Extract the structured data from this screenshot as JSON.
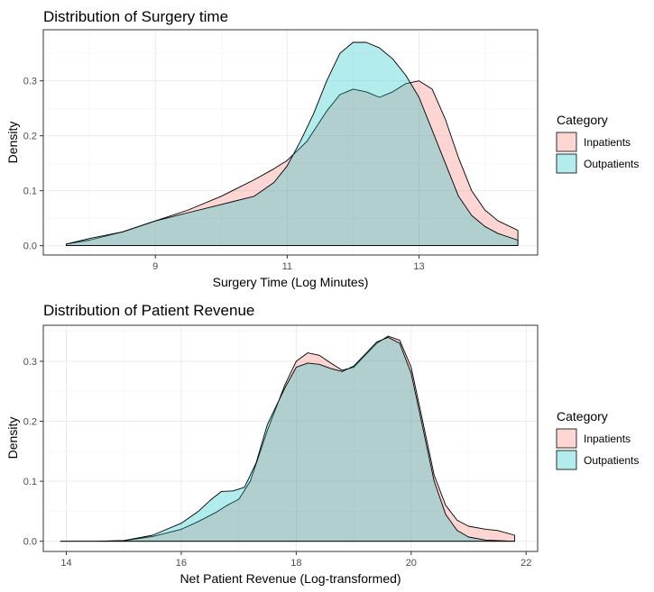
{
  "colors": {
    "inpatients": "#F8766D",
    "outpatients": "#00BFC4"
  },
  "chart_data": [
    {
      "type": "area",
      "title": "Distribution of Surgery time",
      "xlabel": "Surgery Time (Log Minutes)",
      "ylabel": "Density",
      "xlim": [
        7.3,
        14.8
      ],
      "ylim": [
        -0.017,
        0.393
      ],
      "xticks": [
        9,
        11,
        13
      ],
      "yticks": [
        0.0,
        0.1,
        0.2,
        0.3
      ],
      "ytick_labels": [
        "0.0",
        "0.1",
        "0.2",
        "0.3"
      ],
      "grid": true,
      "legend": {
        "title": "Category",
        "position": "right"
      },
      "series": [
        {
          "name": "Inpatients",
          "x": [
            7.65,
            8.0,
            8.5,
            9.0,
            9.5,
            10.0,
            10.5,
            10.8,
            11.0,
            11.3,
            11.6,
            11.8,
            12.0,
            12.2,
            12.4,
            12.6,
            12.8,
            13.0,
            13.2,
            13.4,
            13.6,
            13.8,
            14.0,
            14.2,
            14.5
          ],
          "y": [
            0.003,
            0.01,
            0.025,
            0.045,
            0.065,
            0.09,
            0.12,
            0.14,
            0.155,
            0.19,
            0.245,
            0.275,
            0.285,
            0.28,
            0.27,
            0.28,
            0.295,
            0.3,
            0.285,
            0.23,
            0.16,
            0.1,
            0.065,
            0.045,
            0.028
          ]
        },
        {
          "name": "Outpatients",
          "x": [
            7.65,
            8.0,
            8.5,
            9.0,
            9.5,
            10.0,
            10.5,
            10.8,
            11.0,
            11.2,
            11.4,
            11.6,
            11.8,
            12.0,
            12.2,
            12.4,
            12.6,
            12.8,
            13.0,
            13.2,
            13.4,
            13.6,
            13.8,
            14.0,
            14.2,
            14.5
          ],
          "y": [
            0.003,
            0.013,
            0.025,
            0.045,
            0.06,
            0.075,
            0.09,
            0.115,
            0.145,
            0.19,
            0.24,
            0.3,
            0.35,
            0.37,
            0.37,
            0.36,
            0.34,
            0.31,
            0.27,
            0.21,
            0.15,
            0.09,
            0.055,
            0.035,
            0.022,
            0.01
          ]
        }
      ]
    },
    {
      "type": "area",
      "title": "Distribution of Patient Revenue",
      "xlabel": "Net Patient Revenue (Log-transformed)",
      "ylabel": "Density",
      "xlim": [
        13.6,
        22.2
      ],
      "ylim": [
        -0.017,
        0.36
      ],
      "xticks": [
        14,
        16,
        18,
        20,
        22
      ],
      "yticks": [
        0.0,
        0.1,
        0.2,
        0.3
      ],
      "ytick_labels": [
        "0.0",
        "0.1",
        "0.2",
        "0.3"
      ],
      "grid": true,
      "legend": {
        "title": "Category",
        "position": "right"
      },
      "series": [
        {
          "name": "Inpatients",
          "x": [
            13.9,
            14.5,
            15.0,
            15.5,
            16.0,
            16.3,
            16.6,
            16.8,
            17.0,
            17.2,
            17.5,
            17.8,
            18.0,
            18.2,
            18.4,
            18.6,
            18.8,
            19.0,
            19.2,
            19.4,
            19.6,
            19.8,
            20.0,
            20.2,
            20.4,
            20.6,
            20.8,
            21.0,
            21.3,
            21.5,
            21.8
          ],
          "y": [
            0.0,
            0.0,
            0.001,
            0.008,
            0.02,
            0.033,
            0.048,
            0.06,
            0.07,
            0.1,
            0.185,
            0.26,
            0.3,
            0.314,
            0.31,
            0.297,
            0.285,
            0.29,
            0.31,
            0.33,
            0.342,
            0.335,
            0.29,
            0.2,
            0.11,
            0.06,
            0.035,
            0.025,
            0.02,
            0.018,
            0.01
          ]
        },
        {
          "name": "Outpatients",
          "x": [
            13.9,
            14.5,
            15.0,
            15.5,
            16.0,
            16.3,
            16.5,
            16.7,
            16.9,
            17.1,
            17.3,
            17.5,
            17.8,
            18.0,
            18.2,
            18.4,
            18.6,
            18.8,
            19.0,
            19.2,
            19.4,
            19.6,
            19.8,
            20.0,
            20.2,
            20.4,
            20.6,
            20.8,
            21.0,
            21.3,
            21.8
          ],
          "y": [
            0.0,
            0.0,
            0.001,
            0.01,
            0.03,
            0.05,
            0.068,
            0.083,
            0.084,
            0.09,
            0.13,
            0.195,
            0.255,
            0.29,
            0.297,
            0.295,
            0.288,
            0.283,
            0.292,
            0.312,
            0.332,
            0.34,
            0.33,
            0.28,
            0.19,
            0.1,
            0.045,
            0.018,
            0.007,
            0.002,
            0.0
          ]
        }
      ]
    }
  ]
}
